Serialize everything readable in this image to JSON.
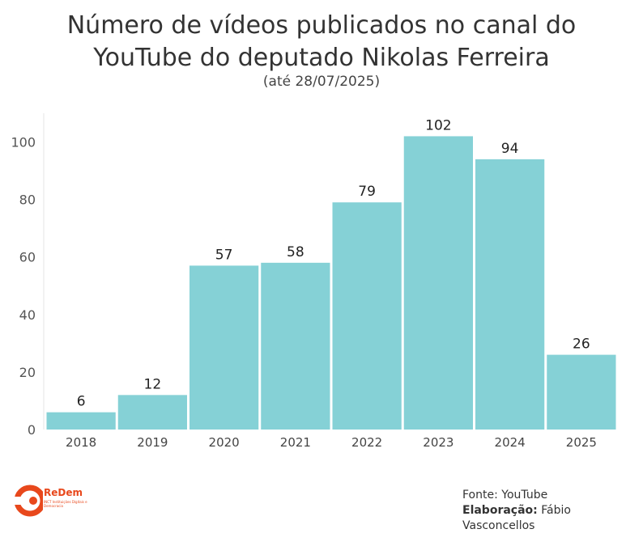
{
  "chart_data": {
    "type": "bar",
    "title": "Número de vídeos publicados no canal do YouTube do deputado Nikolas Ferreira",
    "title_line1": "Número de vídeos publicados no canal do",
    "title_line2": "YouTube do deputado Nikolas Ferreira",
    "subtitle": "(até 28/07/2025)",
    "xlabel": "",
    "ylabel": "",
    "categories": [
      "2018",
      "2019",
      "2020",
      "2021",
      "2022",
      "2023",
      "2024",
      "2025"
    ],
    "values": [
      6,
      12,
      57,
      58,
      79,
      102,
      94,
      26
    ],
    "ylim": [
      0,
      110
    ],
    "yticks": [
      0,
      20,
      40,
      60,
      80,
      100
    ],
    "grid": false,
    "bar_color": "#85d1d6"
  },
  "footer": {
    "source_label": "Fonte: YouTube",
    "credit_label": "Elaboração:",
    "credit_name": "Fábio Vasconcellos"
  },
  "logo": {
    "name": "ReDem",
    "tagline": "INCT Instituições Digitais e Democracia"
  }
}
